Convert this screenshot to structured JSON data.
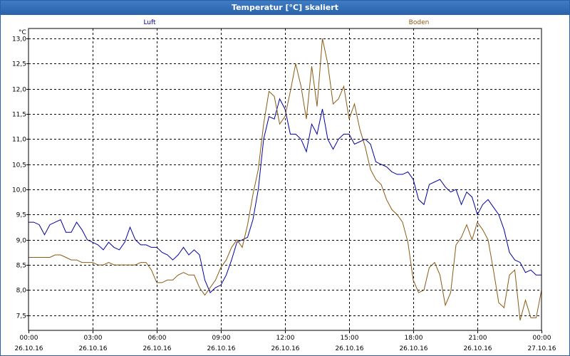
{
  "window": {
    "title": "Temperatur [°C] skaliert"
  },
  "chart_data": {
    "type": "line",
    "unit_label": "°C",
    "ylim": [
      7.2,
      13.2
    ],
    "y_ticks": [
      7.5,
      8.0,
      8.5,
      9.0,
      9.5,
      10.0,
      10.5,
      11.0,
      11.5,
      12.0,
      12.5,
      13.0
    ],
    "y_tick_labels": [
      "7,5",
      "8,0",
      "8,5",
      "9,0",
      "9,5",
      "10,0",
      "10,5",
      "11,0",
      "11,5",
      "12,0",
      "12,5",
      "13,0"
    ],
    "xlim": [
      0,
      24
    ],
    "x_ticks": [
      0,
      3,
      6,
      9,
      12,
      15,
      18,
      21,
      24
    ],
    "x_tick_labels": [
      [
        "00:00",
        "26.10.16"
      ],
      [
        "03:00",
        "26.10.16"
      ],
      [
        "06:00",
        "26.10.16"
      ],
      [
        "09:00",
        "26.10.16"
      ],
      [
        "12:00",
        "26.10.16"
      ],
      [
        "15:00",
        "26.10.16"
      ],
      [
        "18:00",
        "26.10.16"
      ],
      [
        "21:00",
        "26.10.16"
      ],
      [
        "00:00",
        "27.10.16"
      ]
    ],
    "grid": true,
    "series": [
      {
        "name": "Luft",
        "color": "#0000a0",
        "x": [
          0,
          0.25,
          0.5,
          0.75,
          1.0,
          1.25,
          1.5,
          1.75,
          2.0,
          2.25,
          2.5,
          2.75,
          3.0,
          3.25,
          3.5,
          3.75,
          4.0,
          4.25,
          4.5,
          4.75,
          5.0,
          5.25,
          5.5,
          5.75,
          6.0,
          6.25,
          6.5,
          6.75,
          7.0,
          7.25,
          7.5,
          7.75,
          8.0,
          8.25,
          8.5,
          8.75,
          9.0,
          9.25,
          9.5,
          9.75,
          10.0,
          10.25,
          10.5,
          10.75,
          11.0,
          11.25,
          11.5,
          11.75,
          12.0,
          12.25,
          12.5,
          12.75,
          13.0,
          13.25,
          13.5,
          13.75,
          14.0,
          14.25,
          14.5,
          14.75,
          15.0,
          15.25,
          15.5,
          15.75,
          16.0,
          16.25,
          16.5,
          16.75,
          17.0,
          17.25,
          17.5,
          17.75,
          18.0,
          18.25,
          18.5,
          18.75,
          19.0,
          19.25,
          19.5,
          19.75,
          20.0,
          20.25,
          20.5,
          20.75,
          21.0,
          21.25,
          21.5,
          21.75,
          22.0,
          22.25,
          22.5,
          22.75,
          23.0,
          23.25,
          23.5,
          23.75,
          24.0
        ],
        "y": [
          9.35,
          9.35,
          9.3,
          9.1,
          9.3,
          9.35,
          9.4,
          9.15,
          9.15,
          9.35,
          9.2,
          9.0,
          8.95,
          8.9,
          8.8,
          8.95,
          8.85,
          8.8,
          8.95,
          9.25,
          9.0,
          8.9,
          8.9,
          8.85,
          8.85,
          8.75,
          8.7,
          8.6,
          8.7,
          8.85,
          8.7,
          8.8,
          8.7,
          8.2,
          7.95,
          8.05,
          8.1,
          8.3,
          8.6,
          8.95,
          9.0,
          9.05,
          9.4,
          10.0,
          11.0,
          11.45,
          11.4,
          11.8,
          11.6,
          11.1,
          11.1,
          11.0,
          10.75,
          11.3,
          11.1,
          11.6,
          11.0,
          10.8,
          11.0,
          11.1,
          11.1,
          10.9,
          10.95,
          11.0,
          10.9,
          10.55,
          10.5,
          10.45,
          10.35,
          10.3,
          10.3,
          10.35,
          10.2,
          9.8,
          9.7,
          10.1,
          10.15,
          10.2,
          10.05,
          9.95,
          10.0,
          9.7,
          9.95,
          9.85,
          9.5,
          9.7,
          9.8,
          9.65,
          9.5,
          9.2,
          8.75,
          8.6,
          8.55,
          8.35,
          8.4,
          8.3,
          8.3
        ]
      },
      {
        "name": "Boden",
        "color": "#8b5a12",
        "x": [
          0,
          0.25,
          0.5,
          0.75,
          1.0,
          1.25,
          1.5,
          1.75,
          2.0,
          2.25,
          2.5,
          2.75,
          3.0,
          3.25,
          3.5,
          3.75,
          4.0,
          4.25,
          4.5,
          4.75,
          5.0,
          5.25,
          5.5,
          5.75,
          6.0,
          6.25,
          6.5,
          6.75,
          7.0,
          7.25,
          7.5,
          7.75,
          8.0,
          8.25,
          8.5,
          8.75,
          9.0,
          9.25,
          9.5,
          9.75,
          10.0,
          10.25,
          10.5,
          10.75,
          11.0,
          11.25,
          11.5,
          11.75,
          12.0,
          12.25,
          12.5,
          12.75,
          13.0,
          13.25,
          13.5,
          13.75,
          14.0,
          14.25,
          14.5,
          14.75,
          15.0,
          15.25,
          15.5,
          15.75,
          16.0,
          16.25,
          16.5,
          16.75,
          17.0,
          17.25,
          17.5,
          17.75,
          18.0,
          18.25,
          18.5,
          18.75,
          19.0,
          19.25,
          19.5,
          19.75,
          20.0,
          20.25,
          20.5,
          20.75,
          21.0,
          21.25,
          21.5,
          21.75,
          22.0,
          22.25,
          22.5,
          22.75,
          23.0,
          23.25,
          23.5,
          23.75,
          24.0
        ],
        "y": [
          8.65,
          8.65,
          8.65,
          8.65,
          8.65,
          8.7,
          8.7,
          8.65,
          8.6,
          8.6,
          8.55,
          8.55,
          8.55,
          8.5,
          8.5,
          8.55,
          8.5,
          8.5,
          8.5,
          8.5,
          8.5,
          8.55,
          8.55,
          8.4,
          8.15,
          8.15,
          8.2,
          8.2,
          8.3,
          8.35,
          8.3,
          8.3,
          8.05,
          7.9,
          8.05,
          8.2,
          8.45,
          8.6,
          8.85,
          9.0,
          8.85,
          9.3,
          9.9,
          10.4,
          11.3,
          11.95,
          11.85,
          11.3,
          11.45,
          11.95,
          12.5,
          12.05,
          11.4,
          12.45,
          11.65,
          13.0,
          12.5,
          11.7,
          11.8,
          12.05,
          11.4,
          11.7,
          11.2,
          10.85,
          10.4,
          10.2,
          10.1,
          9.8,
          9.6,
          9.5,
          9.35,
          8.95,
          8.2,
          7.95,
          8.0,
          8.45,
          8.55,
          8.3,
          7.7,
          7.95,
          8.9,
          9.05,
          9.3,
          9.0,
          9.35,
          9.2,
          9.0,
          8.4,
          7.75,
          7.65,
          8.3,
          8.4,
          7.4,
          7.8,
          7.45,
          7.45,
          8.0
        ]
      }
    ]
  }
}
